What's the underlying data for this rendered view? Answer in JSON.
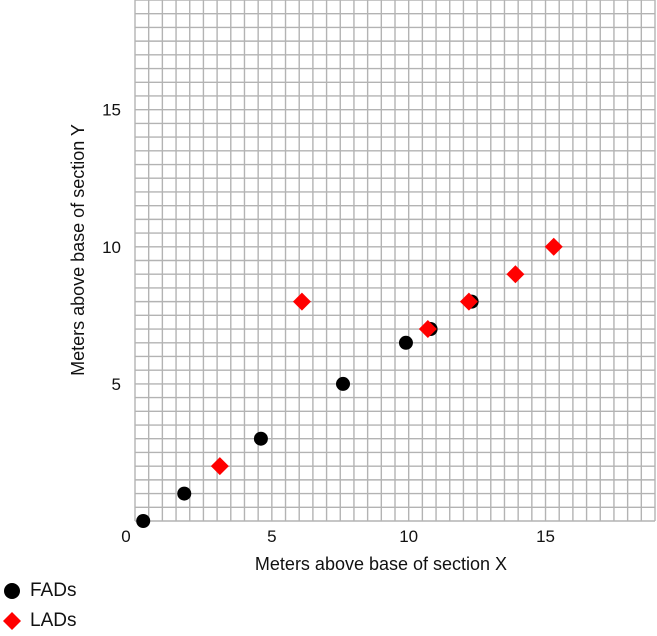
{
  "chart_data": {
    "type": "scatter",
    "xlabel": "Meters above base of section X",
    "ylabel": "Meters above base of section Y",
    "xlim": [
      0,
      19
    ],
    "ylim": [
      0,
      19
    ],
    "x_ticks": [
      0,
      5,
      10,
      15
    ],
    "y_ticks": [
      5,
      10,
      15
    ],
    "grid": true,
    "legend_position": "bottom-left",
    "series": [
      {
        "name": "FADs",
        "marker": "circle",
        "color": "#000000",
        "points": [
          {
            "x": 0.3,
            "y": 0.0
          },
          {
            "x": 1.8,
            "y": 1.0
          },
          {
            "x": 4.6,
            "y": 3.0
          },
          {
            "x": 7.6,
            "y": 5.0
          },
          {
            "x": 9.9,
            "y": 6.5
          },
          {
            "x": 10.8,
            "y": 7.0
          },
          {
            "x": 12.3,
            "y": 8.0
          }
        ]
      },
      {
        "name": "LADs",
        "marker": "diamond",
        "color": "#ff0000",
        "points": [
          {
            "x": 3.1,
            "y": 2.0
          },
          {
            "x": 6.1,
            "y": 8.0
          },
          {
            "x": 10.7,
            "y": 7.0
          },
          {
            "x": 12.2,
            "y": 8.0
          },
          {
            "x": 13.9,
            "y": 9.0
          },
          {
            "x": 15.3,
            "y": 10.0
          }
        ]
      }
    ]
  }
}
